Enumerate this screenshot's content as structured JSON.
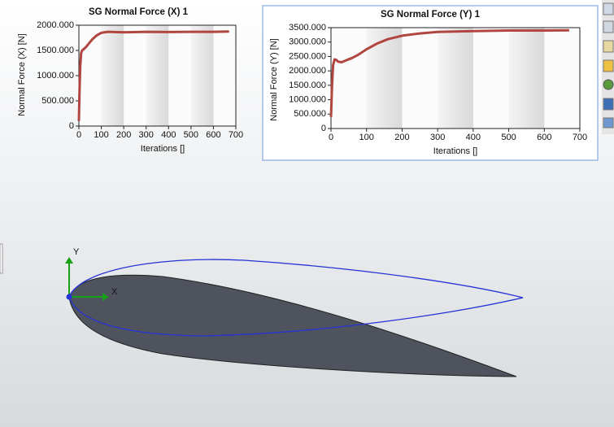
{
  "chart_data": [
    {
      "type": "line",
      "title": "SG Normal Force (X) 1",
      "x_label": "Iterations []",
      "y_label": "Normal Force (X) [N]",
      "series": [
        {
          "name": "SG Normal Force (X) 1",
          "color": "#b0463f",
          "x": [
            0,
            3,
            6,
            10,
            15,
            20,
            30,
            45,
            60,
            80,
            100,
            130,
            200,
            300,
            400,
            500,
            600,
            670
          ],
          "values": [
            100,
            700,
            1200,
            1450,
            1500,
            1520,
            1560,
            1640,
            1720,
            1800,
            1850,
            1870,
            1860,
            1870,
            1865,
            1870,
            1870,
            1875
          ]
        }
      ],
      "xlim": [
        0,
        700
      ],
      "xticks": [
        0,
        100,
        200,
        300,
        400,
        500,
        600,
        700
      ],
      "ylim": [
        0,
        2000
      ],
      "yticks": [
        0,
        {
          "value": 500,
          "label": "500.000"
        },
        {
          "value": 1000,
          "label": "1000.000"
        },
        {
          "value": 1500,
          "label": "1500.000"
        },
        {
          "value": 2000,
          "label": "2000.000"
        }
      ]
    },
    {
      "type": "line",
      "title": "SG Normal Force (Y) 1",
      "x_label": "Iterations []",
      "y_label": "Normal Force (Y) [N]",
      "series": [
        {
          "name": "SG Normal Force (Y) 1",
          "color": "#b0463f",
          "x": [
            0,
            3,
            6,
            10,
            15,
            20,
            30,
            45,
            60,
            75,
            100,
            130,
            160,
            200,
            250,
            300,
            400,
            500,
            600,
            670
          ],
          "values": [
            400,
            1500,
            2200,
            2400,
            2380,
            2320,
            2300,
            2380,
            2450,
            2550,
            2750,
            2950,
            3100,
            3220,
            3300,
            3350,
            3380,
            3400,
            3400,
            3410
          ]
        }
      ],
      "xlim": [
        0,
        700
      ],
      "xticks": [
        0,
        100,
        200,
        300,
        400,
        500,
        600,
        700
      ],
      "ylim": [
        0,
        3500
      ],
      "yticks": [
        0,
        {
          "value": 500,
          "label": "500.000"
        },
        {
          "value": 1000,
          "label": "1000.000"
        },
        {
          "value": 1500,
          "label": "1500.000"
        },
        {
          "value": 2000,
          "label": "2000.000"
        },
        {
          "value": 2500,
          "label": "2500.000"
        },
        {
          "value": 3000,
          "label": "3000.000"
        },
        {
          "value": 3500,
          "label": "3500.000"
        }
      ]
    }
  ],
  "triad": {
    "x": "X",
    "y": "Y"
  }
}
